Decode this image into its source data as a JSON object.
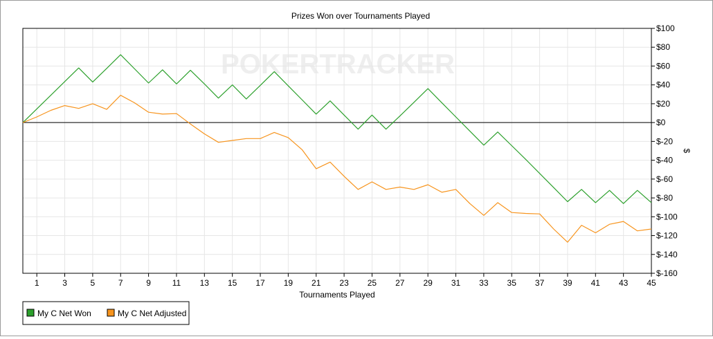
{
  "chart_data": {
    "type": "line",
    "title": "Prizes Won over Tournaments Played",
    "xlabel": "Tournaments Played",
    "ylabel": "$",
    "watermark": "POKERTRACKER",
    "xlim": [
      0,
      45
    ],
    "ylim": [
      -160,
      100
    ],
    "grid": true,
    "legend_position": "bottom-left",
    "x_ticks": [
      1,
      3,
      5,
      7,
      9,
      11,
      13,
      15,
      17,
      19,
      21,
      23,
      25,
      27,
      29,
      31,
      33,
      35,
      37,
      39,
      41,
      43,
      45
    ],
    "y_ticks": [
      100,
      80,
      60,
      40,
      20,
      0,
      -20,
      -40,
      -60,
      -80,
      -100,
      -120,
      -140,
      -160
    ],
    "y_tick_labels": [
      "$100",
      "$80",
      "$60",
      "$40",
      "$20",
      "$0",
      "$-20",
      "$-40",
      "$-60",
      "$-80",
      "$-100",
      "$-120",
      "$-140",
      "$-160"
    ],
    "x": [
      0,
      1,
      2,
      3,
      4,
      5,
      6,
      7,
      8,
      9,
      10,
      11,
      12,
      13,
      14,
      15,
      16,
      17,
      18,
      19,
      20,
      21,
      22,
      23,
      24,
      25,
      26,
      27,
      28,
      29,
      30,
      31,
      32,
      33,
      34,
      35,
      36,
      37,
      38,
      39,
      40,
      41,
      42,
      43,
      44,
      45
    ],
    "series": [
      {
        "name": "My C Net Won",
        "color": "#2ca02c",
        "values": [
          0,
          14.5,
          29,
          43.5,
          58,
          43,
          57.5,
          72,
          57,
          42,
          56,
          41,
          55.5,
          41,
          26,
          40,
          25,
          39.5,
          54,
          39,
          24,
          9,
          23,
          8,
          -7,
          8,
          -7,
          7,
          21.5,
          36,
          21,
          6,
          -9,
          -24,
          -10,
          -24.5,
          -39,
          -54,
          -69,
          -84,
          -71,
          -85,
          -72,
          -86,
          -72,
          -85
        ]
      },
      {
        "name": "My C Net Adjusted",
        "color": "#f7941d",
        "values": [
          0,
          6,
          13,
          18,
          15,
          20,
          14,
          29,
          21,
          11,
          9,
          9.5,
          -1.5,
          -12,
          -21,
          -19,
          -17,
          -17,
          -10.5,
          -16,
          -29,
          -49,
          -42,
          -57,
          -71,
          -63,
          -71,
          -68.5,
          -71,
          -66,
          -74,
          -71,
          -86,
          -98.5,
          -85,
          -95.5,
          -96.5,
          -97,
          -113,
          -127,
          -109,
          -117,
          -108,
          -105,
          -115,
          -113
        ]
      }
    ]
  }
}
